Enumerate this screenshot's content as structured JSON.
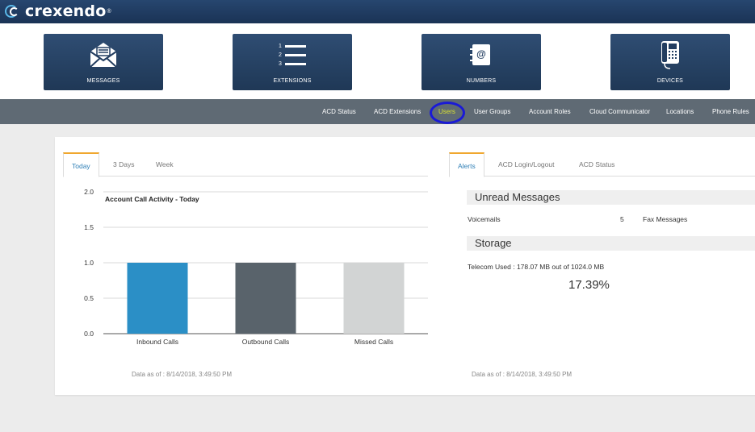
{
  "brand": {
    "name": "crexendo",
    "reg": "®"
  },
  "tiles": [
    {
      "label": "MESSAGES",
      "icon": "envelope-icon"
    },
    {
      "label": "EXTENSIONS",
      "icon": "numbered-list-icon",
      "list_numbers": [
        "1",
        "2",
        "3"
      ]
    },
    {
      "label": "NUMBERS",
      "icon": "address-book-icon",
      "glyph": "@"
    },
    {
      "label": "DEVICES",
      "icon": "desk-phone-icon"
    }
  ],
  "nav": {
    "items": [
      "ACD Status",
      "ACD Extensions",
      "Users",
      "User Groups",
      "Account Roles",
      "Cloud Communicator",
      "Locations",
      "Phone Rules"
    ],
    "active": "Users"
  },
  "left_tabs": [
    "Today",
    "3 Days",
    "Week"
  ],
  "right_tabs": [
    "Alerts",
    "ACD Login/Logout",
    "ACD Status"
  ],
  "chart_data": {
    "type": "bar",
    "title": "Account Call Activity - Today",
    "categories": [
      "Inbound Calls",
      "Outbound Calls",
      "Missed Calls"
    ],
    "values": [
      1,
      1,
      1
    ],
    "colors": [
      "#2b8fc6",
      "#59636b",
      "#d2d4d4"
    ],
    "ylim": [
      0,
      2
    ],
    "yticks": [
      "0.0",
      "0.5",
      "1.0",
      "1.5",
      "2.0"
    ],
    "grid": true
  },
  "left_footer": "Data as of : 8/14/2018, 3:49:50 PM",
  "alerts": {
    "unread_title": "Unread Messages",
    "voicemails_label": "Voicemails",
    "voicemails_count": "5",
    "fax_label": "Fax Messages",
    "storage_title": "Storage",
    "storage_text": "Telecom Used : 178.07 MB out of 1024.0 MB",
    "storage_percent": "17.39%"
  },
  "right_footer": "Data as of : 8/14/2018, 3:49:50 PM"
}
